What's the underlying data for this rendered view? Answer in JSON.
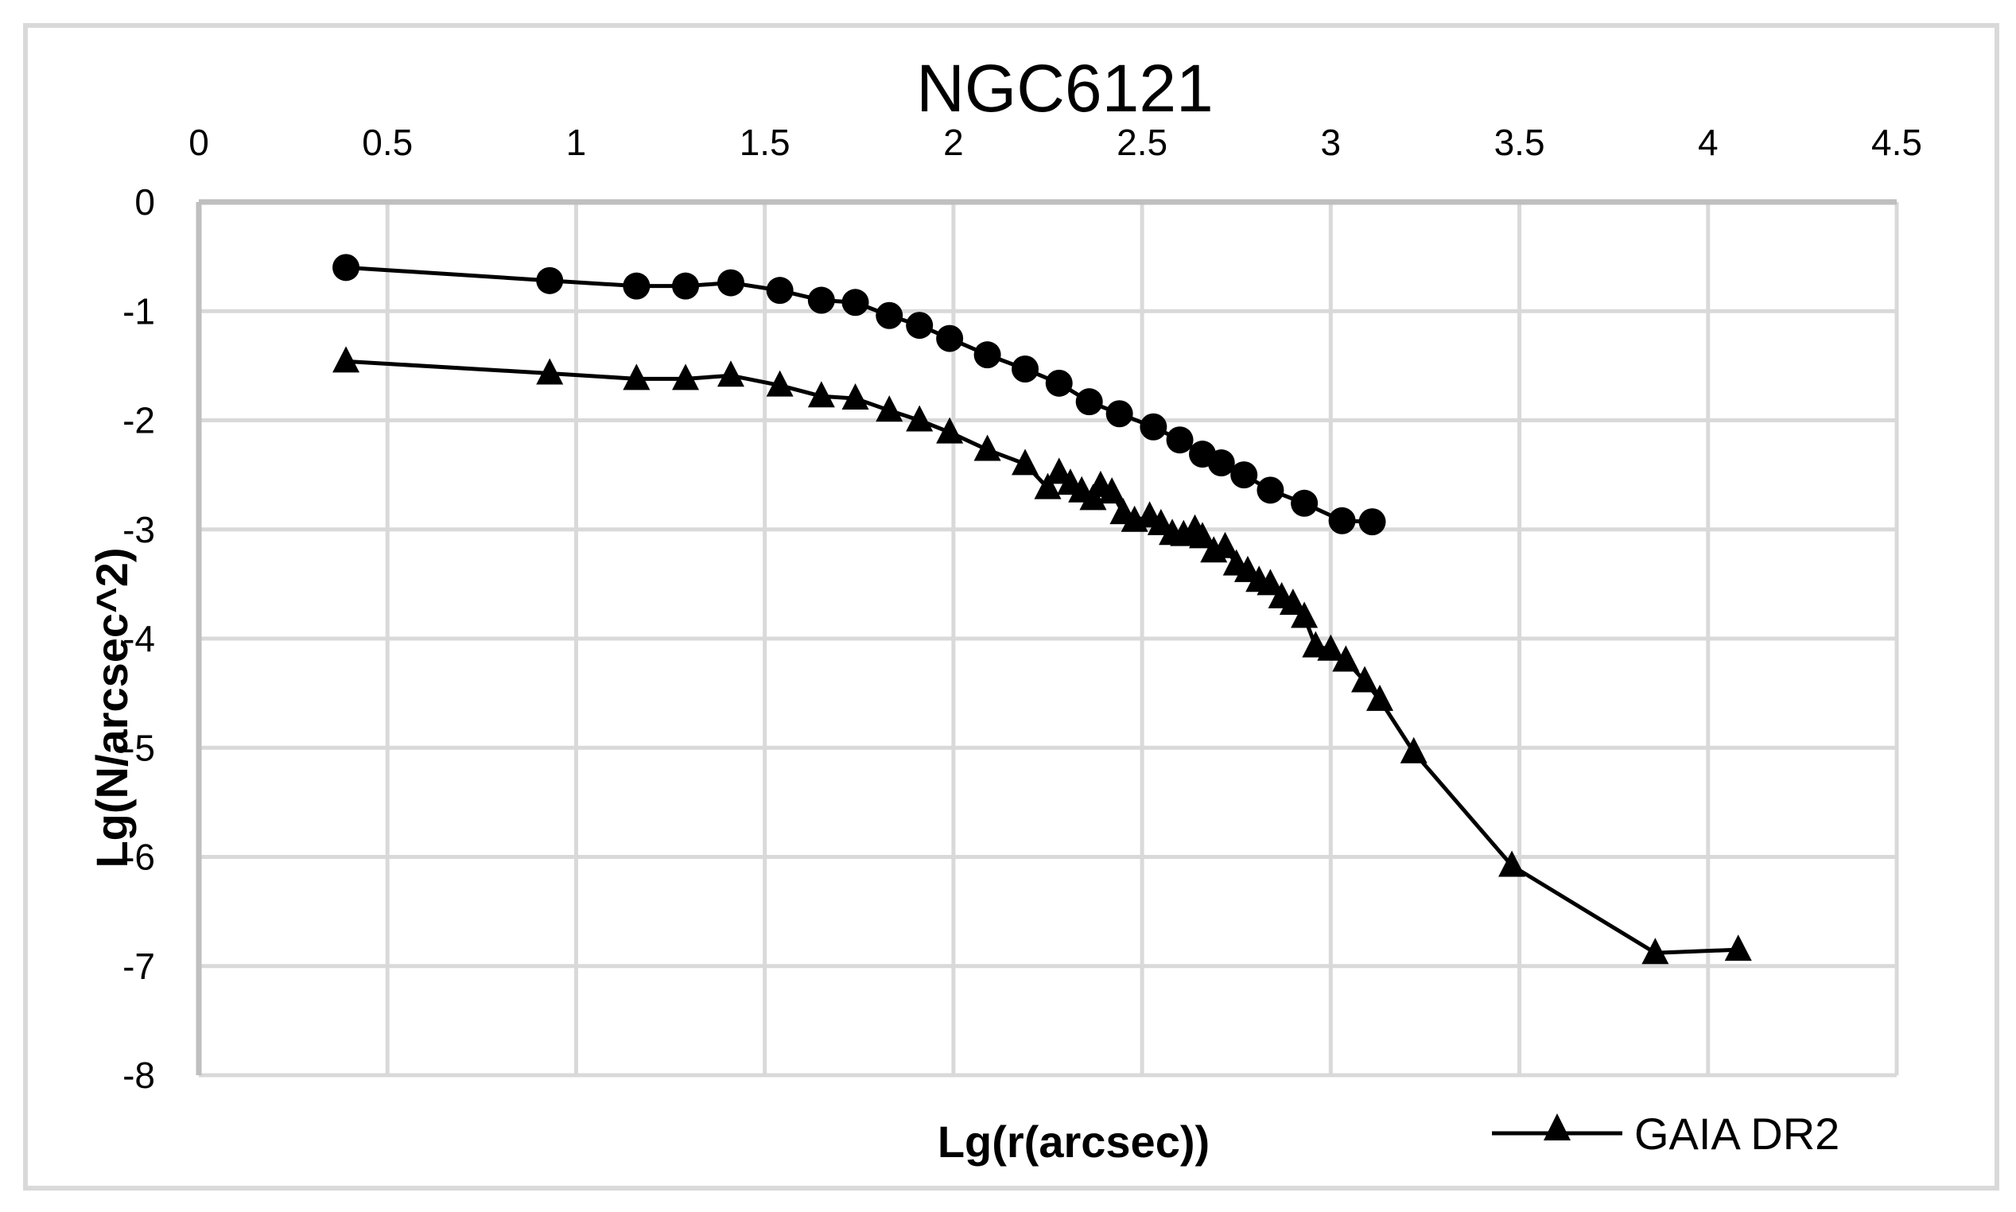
{
  "chart_data": {
    "type": "line",
    "title": "NGC6121",
    "xlabel": "Lg(r(arcsec))",
    "ylabel": "Lg(N/arcsec^2)",
    "xlim": [
      0,
      4.5
    ],
    "ylim": [
      -8,
      0
    ],
    "x_ticks": [
      "0",
      "0.5",
      "1",
      "1.5",
      "2",
      "2.5",
      "3",
      "3.5",
      "4",
      "4.5"
    ],
    "y_ticks": [
      "0",
      "-1",
      "-2",
      "-3",
      "-4",
      "-5",
      "-6",
      "-7",
      "-8"
    ],
    "x_axis_position": "top",
    "grid": true,
    "legend": {
      "position": "bottom-right",
      "entries": [
        "GAIA DR2"
      ]
    },
    "series": [
      {
        "name": "(unlabeled circle series)",
        "marker": "circle",
        "color": "#000000",
        "x": [
          0.39,
          0.93,
          1.16,
          1.29,
          1.41,
          1.54,
          1.65,
          1.74,
          1.83,
          1.91,
          1.99,
          2.09,
          2.19,
          2.28,
          2.36,
          2.44,
          2.53,
          2.6,
          2.66,
          2.71,
          2.77,
          2.84,
          2.93,
          3.03,
          3.11
        ],
        "y": [
          -0.6,
          -0.72,
          -0.77,
          -0.77,
          -0.74,
          -0.81,
          -0.9,
          -0.92,
          -1.04,
          -1.13,
          -1.25,
          -1.4,
          -1.53,
          -1.66,
          -1.83,
          -1.94,
          -2.06,
          -2.18,
          -2.31,
          -2.39,
          -2.5,
          -2.64,
          -2.76,
          -2.92,
          -2.93
        ]
      },
      {
        "name": "GAIA DR2",
        "marker": "triangle",
        "color": "#000000",
        "x": [
          0.39,
          0.93,
          1.16,
          1.29,
          1.41,
          1.54,
          1.65,
          1.74,
          1.83,
          1.91,
          1.99,
          2.09,
          2.19,
          2.25,
          2.28,
          2.31,
          2.34,
          2.37,
          2.39,
          2.42,
          2.45,
          2.48,
          2.52,
          2.55,
          2.58,
          2.61,
          2.64,
          2.66,
          2.69,
          2.72,
          2.75,
          2.78,
          2.81,
          2.84,
          2.87,
          2.9,
          2.93,
          2.96,
          3.0,
          3.04,
          3.09,
          3.13,
          3.22,
          3.48,
          3.86,
          4.08
        ],
        "y": [
          -1.46,
          -1.57,
          -1.62,
          -1.62,
          -1.59,
          -1.68,
          -1.78,
          -1.8,
          -1.91,
          -2.0,
          -2.11,
          -2.27,
          -2.4,
          -2.62,
          -2.48,
          -2.58,
          -2.65,
          -2.72,
          -2.6,
          -2.66,
          -2.85,
          -2.92,
          -2.88,
          -2.95,
          -3.04,
          -3.05,
          -3.0,
          -3.07,
          -3.2,
          -3.16,
          -3.32,
          -3.38,
          -3.47,
          -3.5,
          -3.62,
          -3.68,
          -3.8,
          -4.07,
          -4.1,
          -4.2,
          -4.39,
          -4.56,
          -5.04,
          -6.08,
          -6.88,
          -6.85
        ]
      }
    ]
  },
  "colors": {
    "grid": "#d9d9d9",
    "frame": "#d9d9d9",
    "axis": "#bfbfbf",
    "series": "#000000"
  }
}
